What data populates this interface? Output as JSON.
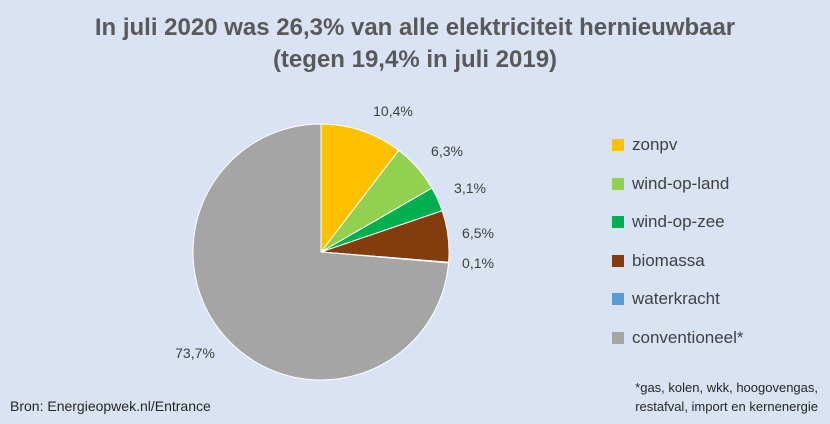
{
  "chart_data": {
    "type": "pie",
    "title_lines": [
      "In juli 2020 was 26,3% van alle elektriciteit hernieuwbaar",
      "(tegen 19,4% in juli 2019)"
    ],
    "slices": [
      {
        "name": "zonpv",
        "value": 10.4,
        "label": "10,4%",
        "color": "#ffc000"
      },
      {
        "name": "wind-op-land",
        "value": 6.3,
        "label": "6,3%",
        "color": "#92d050"
      },
      {
        "name": "wind-op-zee",
        "value": 3.1,
        "label": "3,1%",
        "color": "#00b050"
      },
      {
        "name": "biomassa",
        "value": 6.5,
        "label": "6,5%",
        "color": "#843c0c"
      },
      {
        "name": "waterkracht",
        "value": 0.1,
        "label": "0,1%",
        "color": "#5b9bd5"
      },
      {
        "name": "conventioneel*",
        "value": 73.7,
        "label": "73,7%",
        "color": "#a5a5a5"
      }
    ],
    "legend_position": "right"
  },
  "source": "Bron: Energieopwek.nl/Entrance",
  "footnote_lines": [
    "*gas, kolen, wkk, hoogovengas,",
    "restafval, import en kernenergie"
  ]
}
